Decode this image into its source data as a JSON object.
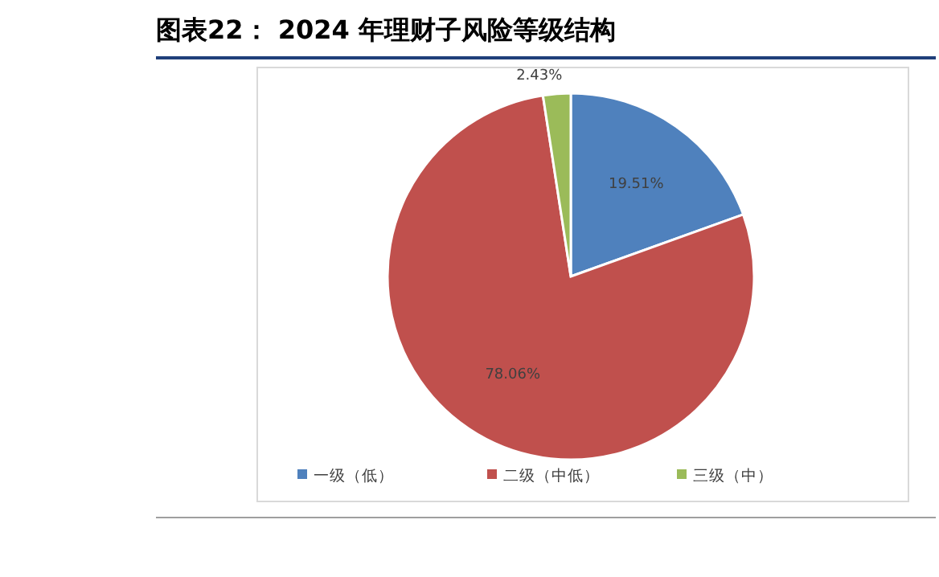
{
  "chart_data": {
    "type": "pie",
    "title": "图表22：  2024 年理财子风险等级结构",
    "categories": [
      "一级（低）",
      "二级（中低）",
      "三级（中）"
    ],
    "values": [
      19.51,
      78.06,
      2.43
    ],
    "colors": [
      "#4f81bd",
      "#c0504d",
      "#9bbb59"
    ],
    "value_labels": [
      "19.51%",
      "78.06%",
      "2.43%"
    ],
    "legend": "bottom"
  }
}
